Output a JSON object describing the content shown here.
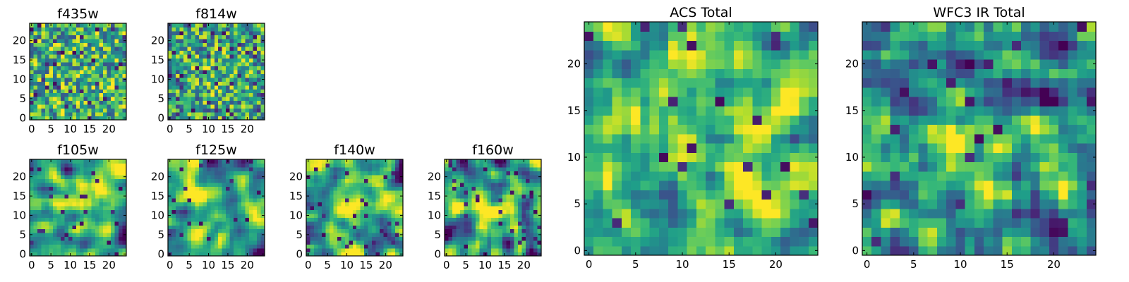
{
  "colormap": "viridis",
  "chart_data": [
    {
      "type": "heatmap",
      "title": "f435w",
      "xticks": [
        "0",
        "5",
        "10",
        "15",
        "20"
      ],
      "yticks": [
        "0",
        "5",
        "10",
        "15",
        "20"
      ],
      "grid_size": [
        25,
        25
      ],
      "xlim": [
        -0.5,
        24.5
      ],
      "ylim": [
        -0.5,
        24.5
      ],
      "vrange": [
        0,
        1
      ],
      "seed": 11,
      "smooth": 0,
      "boost": 0,
      "mean": 0.62,
      "spread": 0.22,
      "dark_fraction": 0.05,
      "grid": false
    },
    {
      "type": "heatmap",
      "title": "f814w",
      "xticks": [
        "0",
        "5",
        "10",
        "15",
        "20"
      ],
      "yticks": [
        "0",
        "5",
        "10",
        "15",
        "20"
      ],
      "grid_size": [
        25,
        25
      ],
      "xlim": [
        -0.5,
        24.5
      ],
      "ylim": [
        -0.5,
        24.5
      ],
      "vrange": [
        0,
        1
      ],
      "seed": 23,
      "smooth": 0,
      "boost": 0.1,
      "mean": 0.6,
      "spread": 0.22,
      "dark_fraction": 0.06,
      "grid": false
    },
    {
      "type": "heatmap",
      "title": "f105w",
      "xticks": [
        "0",
        "5",
        "10",
        "15",
        "20"
      ],
      "yticks": [
        "0",
        "5",
        "10",
        "15",
        "20"
      ],
      "grid_size": [
        25,
        25
      ],
      "xlim": [
        -0.5,
        24.5
      ],
      "ylim": [
        -0.5,
        24.5
      ],
      "vrange": [
        0,
        1
      ],
      "seed": 37,
      "smooth": 2,
      "boost": 0.15,
      "mean": 0.64,
      "spread": 0.2,
      "dark_fraction": 0.03,
      "grid": false
    },
    {
      "type": "heatmap",
      "title": "f125w",
      "xticks": [
        "0",
        "5",
        "10",
        "15",
        "20"
      ],
      "yticks": [
        "0",
        "5",
        "10",
        "15",
        "20"
      ],
      "grid_size": [
        25,
        25
      ],
      "xlim": [
        -0.5,
        24.5
      ],
      "ylim": [
        -0.5,
        24.5
      ],
      "vrange": [
        0,
        1
      ],
      "seed": 41,
      "smooth": 2,
      "boost": 0.15,
      "mean": 0.6,
      "spread": 0.22,
      "dark_fraction": 0.04,
      "grid": false
    },
    {
      "type": "heatmap",
      "title": "f140w",
      "xticks": [
        "0",
        "5",
        "10",
        "15",
        "20"
      ],
      "yticks": [
        "0",
        "5",
        "10",
        "15",
        "20"
      ],
      "grid_size": [
        25,
        25
      ],
      "xlim": [
        -0.5,
        24.5
      ],
      "ylim": [
        -0.5,
        24.5
      ],
      "vrange": [
        0,
        1
      ],
      "seed": 53,
      "smooth": 2,
      "boost": 0.2,
      "mean": 0.62,
      "spread": 0.22,
      "dark_fraction": 0.04,
      "grid": false
    },
    {
      "type": "heatmap",
      "title": "f160w",
      "xticks": [
        "0",
        "5",
        "10",
        "15",
        "20"
      ],
      "yticks": [
        "0",
        "5",
        "10",
        "15",
        "20"
      ],
      "grid_size": [
        25,
        25
      ],
      "xlim": [
        -0.5,
        24.5
      ],
      "ylim": [
        -0.5,
        24.5
      ],
      "vrange": [
        0,
        1
      ],
      "seed": 67,
      "smooth": 2,
      "boost": 0.2,
      "mean": 0.58,
      "spread": 0.24,
      "dark_fraction": 0.05,
      "grid": false
    },
    {
      "type": "heatmap",
      "title": "ACS Total",
      "xticks": [
        "0",
        "5",
        "10",
        "15",
        "20"
      ],
      "yticks": [
        "0",
        "5",
        "10",
        "15",
        "20"
      ],
      "grid_size": [
        25,
        25
      ],
      "xlim": [
        -0.5,
        24.5
      ],
      "ylim": [
        -0.5,
        24.5
      ],
      "vrange": [
        0,
        1
      ],
      "seed": 79,
      "smooth": 1,
      "boost": 0.12,
      "mean": 0.68,
      "spread": 0.17,
      "dark_fraction": 0.025,
      "grid": false
    },
    {
      "type": "heatmap",
      "title": "WFC3 IR Total",
      "xticks": [
        "0",
        "5",
        "10",
        "15",
        "20"
      ],
      "yticks": [
        "0",
        "5",
        "10",
        "15",
        "20"
      ],
      "grid_size": [
        25,
        25
      ],
      "xlim": [
        -0.5,
        24.5
      ],
      "ylim": [
        -0.5,
        24.5
      ],
      "vrange": [
        0,
        1
      ],
      "seed": 97,
      "smooth": 1,
      "boost": 0.3,
      "mean": 0.52,
      "spread": 0.2,
      "dark_fraction": 0.03,
      "grid": false
    }
  ]
}
